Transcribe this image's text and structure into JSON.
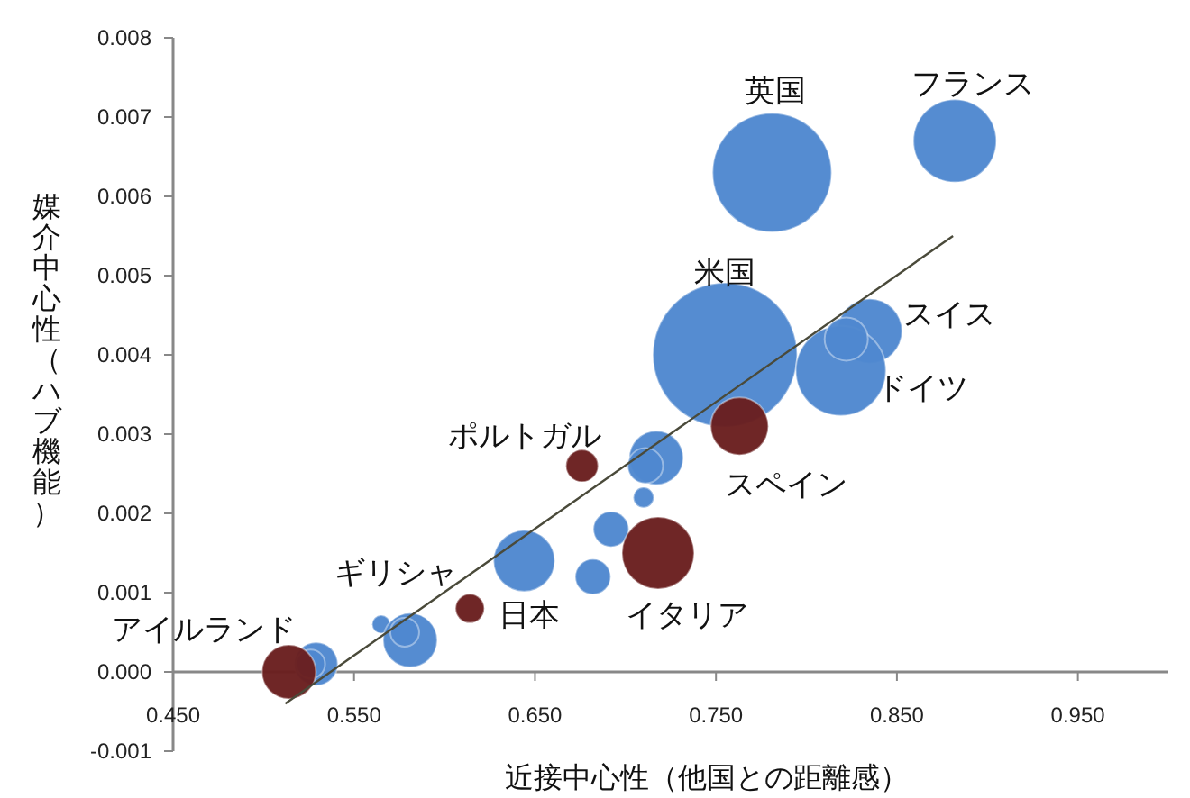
{
  "chart_data": {
    "type": "bubble",
    "xlabel": "近接中心性（他国との距離感）",
    "ylabel": "媒介中心性（ハブ機能）",
    "xlim": [
      0.45,
      1.0
    ],
    "ylim": [
      -0.001,
      0.008
    ],
    "xticks": [
      {
        "value": 0.45,
        "label": "0.450"
      },
      {
        "value": 0.55,
        "label": "0.550"
      },
      {
        "value": 0.65,
        "label": "0.650"
      },
      {
        "value": 0.75,
        "label": "0.750"
      },
      {
        "value": 0.85,
        "label": "0.850"
      },
      {
        "value": 0.95,
        "label": "0.950"
      }
    ],
    "yticks": [
      {
        "value": -0.001,
        "label": "-0.001"
      },
      {
        "value": 0,
        "label": "0.000"
      },
      {
        "value": 0.001,
        "label": "0.001"
      },
      {
        "value": 0.002,
        "label": "0.002"
      },
      {
        "value": 0.003,
        "label": "0.003"
      },
      {
        "value": 0.004,
        "label": "0.004"
      },
      {
        "value": 0.005,
        "label": "0.005"
      },
      {
        "value": 0.006,
        "label": "0.006"
      },
      {
        "value": 0.007,
        "label": "0.007"
      },
      {
        "value": 0.008,
        "label": "0.008"
      }
    ],
    "grid": false,
    "series": [
      {
        "color": "#4f88d0",
        "x": [
          0.781,
          0.882,
          0.755,
          0.835,
          0.819,
          0.822,
          0.717,
          0.711,
          0.71,
          0.692,
          0.682,
          0.644,
          0.565,
          0.581,
          0.578,
          0.529,
          0.526
        ],
        "values": [
          0.0063,
          0.0067,
          0.004,
          0.0043,
          0.0038,
          0.0042,
          0.0027,
          0.0026,
          0.0022,
          0.0018,
          0.0012,
          0.0014,
          0.0006,
          0.0004,
          0.0005,
          0.0001,
          0.0001
        ],
        "sizes": [
          0.68,
          0.33,
          1,
          0.2,
          0.39,
          0.09,
          0.14,
          0.06,
          0.02,
          0.06,
          0.06,
          0.18,
          0.016,
          0.14,
          0.04,
          0.09,
          0.04
        ]
      },
      {
        "color": "#6a1f1f",
        "x": [
          0.763,
          0.676,
          0.718,
          0.614,
          0.514
        ],
        "values": [
          0.0031,
          0.0026,
          0.0015,
          0.0008,
          0.0
        ],
        "sizes": [
          0.16,
          0.05,
          0.25,
          0.04,
          0.14
        ]
      },
      {
        "type": "line",
        "color": "#4a4a3a",
        "x": [
          0.512,
          0.881
        ],
        "values": [
          -0.0004,
          0.0055
        ]
      }
    ],
    "annotations": [
      {
        "text": "英国",
        "x": 0.781,
        "y": 0.0063
      },
      {
        "text": "フランス",
        "x": 0.882,
        "y": 0.0067
      },
      {
        "text": "米国",
        "x": 0.755,
        "y": 0.004
      },
      {
        "text": "スイス",
        "x": 0.835,
        "y": 0.0043
      },
      {
        "text": "ドイツ",
        "x": 0.819,
        "y": 0.0038
      },
      {
        "text": "スペイン",
        "x": 0.763,
        "y": 0.0031
      },
      {
        "text": "ポルトガル",
        "x": 0.676,
        "y": 0.0026
      },
      {
        "text": "ギリシャ",
        "x": 0.581,
        "y": 0.0004
      },
      {
        "text": "日本",
        "x": 0.614,
        "y": 0.0008
      },
      {
        "text": "イタリア",
        "x": 0.718,
        "y": 0.0015
      },
      {
        "text": "アイルランド",
        "x": 0.514,
        "y": 0.0
      }
    ]
  }
}
